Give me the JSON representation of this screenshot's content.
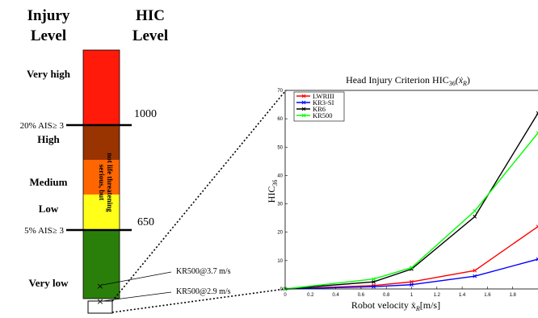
{
  "left_panel": {
    "col_header_left_line1": "Injury",
    "col_header_left_line2": "Level",
    "col_header_right_line1": "HIC",
    "col_header_right_line2": "Level",
    "levels": [
      {
        "label": "Very high",
        "color": "#ff1a0a"
      },
      {
        "label": "High",
        "color": "#993300"
      },
      {
        "label": "Medium",
        "color": "#ff6600"
      },
      {
        "label": "Low",
        "color": "#ffff1a"
      },
      {
        "label": "Very low",
        "color": "#2a7f0a"
      }
    ],
    "bar_vertical_text_line1": "serious, but",
    "bar_vertical_text_line2": "not life threatening",
    "threshold_upper_label": "20% AIS≥ 3",
    "threshold_upper_value": "1000",
    "threshold_lower_label": "5% AIS≥ 3",
    "threshold_lower_value": "650",
    "marker_labels": [
      "KR500@3.7 m/s",
      "KR500@2.9 m/s"
    ]
  },
  "chart_data": {
    "type": "line",
    "title": "Head Injury Criterion HIC",
    "title_sub": "36",
    "title_arg": "(ẋ",
    "title_arg_sub": "R",
    "title_arg_end": ")",
    "xlabel": "Robot velocity ẋ",
    "xlabel_sub": "R",
    "xlabel_unit": "[m/s]",
    "ylabel": "HIC",
    "ylabel_sub": "36",
    "xlim": [
      0,
      2
    ],
    "ylim": [
      0,
      70
    ],
    "xticks": [
      "0",
      "0.2",
      "0.4",
      "0.6",
      "0.8",
      "1",
      "1.2",
      "1.4",
      "1.6",
      "1.8"
    ],
    "yticks": [
      "0",
      "10",
      "20",
      "30",
      "40",
      "50",
      "60",
      "70"
    ],
    "legend_position": "top-left",
    "x": [
      0,
      0.7,
      1.0,
      1.5,
      2.0
    ],
    "series": [
      {
        "name": "LWRIII",
        "color": "#ff0000",
        "values": [
          0,
          1.2,
          2.5,
          6.5,
          22
        ]
      },
      {
        "name": "KR3-SI",
        "color": "#0000ff",
        "values": [
          0,
          0.8,
          1.5,
          4.5,
          10.5
        ]
      },
      {
        "name": "KR6",
        "color": "#000000",
        "values": [
          0,
          2.5,
          7.0,
          25.5,
          62
        ]
      },
      {
        "name": "KR500",
        "color": "#00ff00",
        "values": [
          0,
          3.5,
          7.5,
          27.5,
          55
        ]
      }
    ]
  }
}
